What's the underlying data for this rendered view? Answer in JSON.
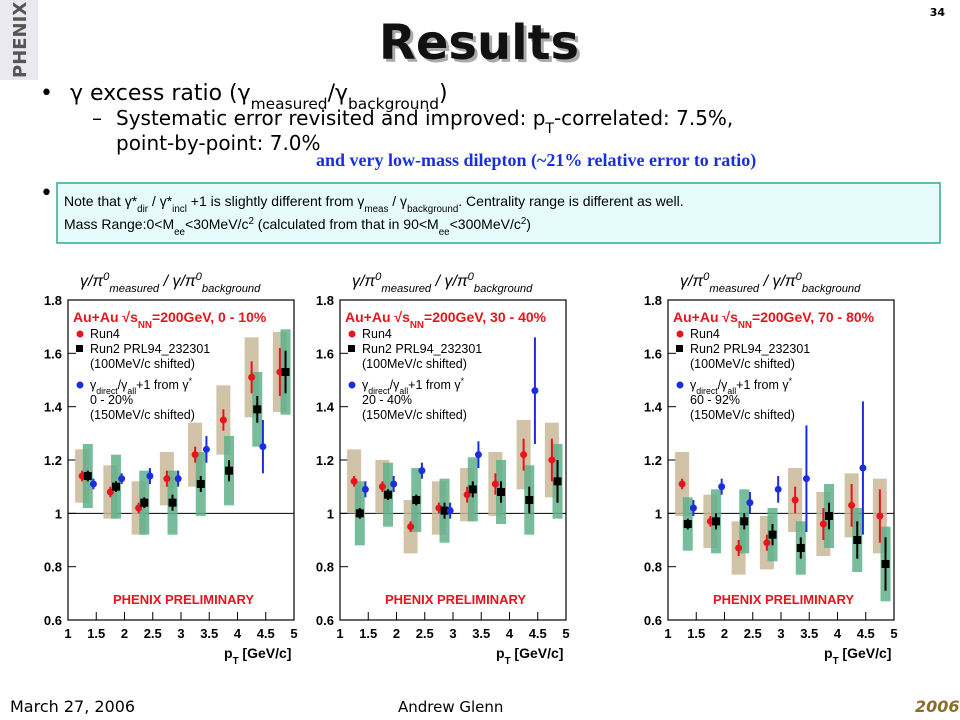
{
  "slide": {
    "page": "34",
    "title": "Results",
    "logo": "PHENIX",
    "bullet1": [
      "γ excess ratio (γ",
      "measured",
      "/γ",
      "background",
      ")"
    ],
    "sub1": [
      "Systematic error revisited and improved: p",
      "T",
      "-correlated: 7.5%,"
    ],
    "sub1b": "point-by-point: 7.0%",
    "annotation": "and very low-mass dilepton (~21% relative error to ratio)",
    "note1": [
      "Note that γ*",
      "dir",
      " / γ*",
      "incl",
      " +1 is slightly different from γ",
      "meas",
      " / γ",
      "background",
      ".  Centrality range is different as well."
    ],
    "note2": [
      "Mass Range:0<M",
      "ee",
      "<30MeV/c",
      "2",
      " (calculated from that in 90<M",
      "ee",
      "<300MeV/c",
      "2",
      ")"
    ],
    "date": "March 27, 2006",
    "author": "Andrew Glenn",
    "conf_logo": "2006"
  },
  "chart_data": [
    {
      "type": "scatter",
      "title_parts": [
        "γ/π",
        "0",
        "measured",
        "  /  γ/π",
        "0",
        "background"
      ],
      "legend_header": [
        "Au+Au √s",
        "NN",
        "=200GeV, 0 - 10%"
      ],
      "xlabel": [
        "p",
        "T",
        " [GeV/c]"
      ],
      "annotation": "PHENIX PRELIMINARY",
      "xlim": [
        1,
        5
      ],
      "ylim": [
        0.6,
        1.8
      ],
      "xticks": [
        1,
        1.5,
        2,
        2.5,
        3,
        3.5,
        4,
        4.5,
        5
      ],
      "yticks": [
        0.6,
        0.8,
        1,
        1.2,
        1.4,
        1.6,
        1.8
      ],
      "hline": 1,
      "series": [
        {
          "name": "Run4",
          "color": "#e8141b",
          "sys_color": "#c8b898",
          "x": [
            1.25,
            1.75,
            2.25,
            2.75,
            3.25,
            3.75,
            4.25,
            4.75
          ],
          "values": [
            1.14,
            1.08,
            1.02,
            1.13,
            1.22,
            1.35,
            1.51,
            1.53
          ],
          "errors": [
            0.02,
            0.02,
            0.02,
            0.03,
            0.03,
            0.04,
            0.06,
            0.09
          ],
          "sys": [
            0.1,
            0.1,
            0.1,
            0.1,
            0.12,
            0.13,
            0.15,
            0.15
          ]
        },
        {
          "name": "Run2 PRL94_232301",
          "notes": [
            "(100MeV/c shifted)"
          ],
          "color": "#000000",
          "sys_color": "#5fb08a",
          "x": [
            1.35,
            1.85,
            2.35,
            2.85,
            3.35,
            3.85,
            4.35,
            4.85
          ],
          "values": [
            1.14,
            1.1,
            1.04,
            1.04,
            1.11,
            1.16,
            1.39,
            1.53
          ],
          "errors": [
            0.02,
            0.02,
            0.02,
            0.03,
            0.03,
            0.04,
            0.05,
            0.08
          ],
          "sys": [
            0.12,
            0.12,
            0.12,
            0.12,
            0.12,
            0.13,
            0.14,
            0.16
          ]
        },
        {
          "name": [
            "γ",
            "direct",
            "/γ",
            "all",
            "+1 from γ",
            "*"
          ],
          "notes": [
            "0 - 20%",
            "(150MeV/c shifted)"
          ],
          "color": "#1a2ee0",
          "x": [
            1.45,
            1.95,
            2.45,
            2.95,
            3.45,
            4.45
          ],
          "values": [
            1.11,
            1.13,
            1.14,
            1.13,
            1.24,
            1.25
          ],
          "errors": [
            0.02,
            0.02,
            0.03,
            0.03,
            0.05,
            0.1
          ]
        }
      ]
    },
    {
      "type": "scatter",
      "title_parts": [
        "γ/π",
        "0",
        "measured",
        "  /  γ/π",
        "0",
        "background"
      ],
      "legend_header": [
        "Au+Au √s",
        "NN",
        "=200GeV, 30 - 40%"
      ],
      "xlabel": [
        "p",
        "T",
        " [GeV/c]"
      ],
      "annotation": "PHENIX PRELIMINARY",
      "xlim": [
        1,
        5
      ],
      "ylim": [
        0.6,
        1.8
      ],
      "xticks": [
        1,
        1.5,
        2,
        2.5,
        3,
        3.5,
        4,
        4.5,
        5
      ],
      "yticks": [
        0.6,
        0.8,
        1,
        1.2,
        1.4,
        1.6,
        1.8
      ],
      "hline": 1,
      "series": [
        {
          "name": "Run4",
          "color": "#e8141b",
          "sys_color": "#c8b898",
          "x": [
            1.25,
            1.75,
            2.25,
            2.75,
            3.25,
            3.75,
            4.25,
            4.75
          ],
          "values": [
            1.12,
            1.1,
            0.95,
            1.02,
            1.07,
            1.11,
            1.22,
            1.2
          ],
          "errors": [
            0.02,
            0.02,
            0.02,
            0.02,
            0.03,
            0.04,
            0.06,
            0.08
          ],
          "sys": [
            0.12,
            0.1,
            0.1,
            0.1,
            0.1,
            0.12,
            0.13,
            0.14
          ]
        },
        {
          "name": "Run2 PRL94_232301",
          "notes": [
            "(100MeV/c shifted)"
          ],
          "color": "#000000",
          "sys_color": "#5fb08a",
          "x": [
            1.35,
            1.85,
            2.35,
            2.85,
            3.35,
            3.85,
            4.35,
            4.85
          ],
          "values": [
            1,
            1.07,
            1.05,
            1.01,
            1.09,
            1.08,
            1.05,
            1.12
          ],
          "errors": [
            0.02,
            0.02,
            0.02,
            0.03,
            0.03,
            0.04,
            0.05,
            0.08
          ],
          "sys": [
            0.12,
            0.12,
            0.12,
            0.12,
            0.12,
            0.12,
            0.13,
            0.14
          ]
        },
        {
          "name": [
            "γ",
            "direct",
            "/γ",
            "all",
            "+1 from γ",
            "*"
          ],
          "notes": [
            "20 - 40%",
            "(150MeV/c shifted)"
          ],
          "color": "#1a2ee0",
          "x": [
            1.45,
            1.95,
            2.45,
            2.95,
            3.45,
            4.45
          ],
          "values": [
            1.09,
            1.11,
            1.16,
            1.01,
            1.22,
            1.46
          ],
          "errors": [
            0.03,
            0.03,
            0.03,
            0.03,
            0.05,
            0.2
          ]
        }
      ]
    },
    {
      "type": "scatter",
      "title_parts": [
        "γ/π",
        "0",
        "measured",
        "  /  γ/π",
        "0",
        "background"
      ],
      "legend_header": [
        "Au+Au √s",
        "NN",
        "=200GeV, 70 - 80%"
      ],
      "xlabel": [
        "p",
        "T",
        " [GeV/c]"
      ],
      "annotation": "PHENIX PRELIMINARY",
      "xlim": [
        1,
        5
      ],
      "ylim": [
        0.6,
        1.8
      ],
      "xticks": [
        1,
        1.5,
        2,
        2.5,
        3,
        3.5,
        4,
        4.5,
        5
      ],
      "yticks": [
        0.6,
        0.8,
        1,
        1.2,
        1.4,
        1.6,
        1.8
      ],
      "hline": 1,
      "series": [
        {
          "name": "Run4",
          "color": "#e8141b",
          "sys_color": "#c8b898",
          "x": [
            1.25,
            1.75,
            2.25,
            2.75,
            3.25,
            3.75,
            4.25,
            4.75
          ],
          "values": [
            1.11,
            0.97,
            0.87,
            0.89,
            1.05,
            0.96,
            1.03,
            0.99
          ],
          "errors": [
            0.02,
            0.02,
            0.03,
            0.03,
            0.05,
            0.06,
            0.08,
            0.1
          ],
          "sys": [
            0.12,
            0.1,
            0.1,
            0.1,
            0.12,
            0.12,
            0.12,
            0.14
          ]
        },
        {
          "name": "Run2 PRL94_232301",
          "notes": [
            "(100MeV/c shifted)"
          ],
          "color": "#000000",
          "sys_color": "#5fb08a",
          "x": [
            1.35,
            1.85,
            2.35,
            2.85,
            3.35,
            3.85,
            4.35,
            4.85
          ],
          "values": [
            0.96,
            0.97,
            0.97,
            0.92,
            0.87,
            0.99,
            0.9,
            0.81
          ],
          "errors": [
            0.02,
            0.03,
            0.03,
            0.04,
            0.04,
            0.05,
            0.07,
            0.1
          ],
          "sys": [
            0.1,
            0.12,
            0.12,
            0.1,
            0.1,
            0.12,
            0.12,
            0.14
          ]
        },
        {
          "name": [
            "γ",
            "direct",
            "/γ",
            "all",
            "+1 from γ",
            "*"
          ],
          "notes": [
            "60 - 92%",
            "(150MeV/c shifted)"
          ],
          "color": "#1a2ee0",
          "x": [
            1.45,
            1.95,
            2.45,
            2.95,
            3.45,
            4.45
          ],
          "values": [
            1.02,
            1.1,
            1.04,
            1.09,
            1.13,
            1.17
          ],
          "errors": [
            0.03,
            0.03,
            0.04,
            0.05,
            0.2,
            0.25
          ]
        }
      ]
    }
  ]
}
